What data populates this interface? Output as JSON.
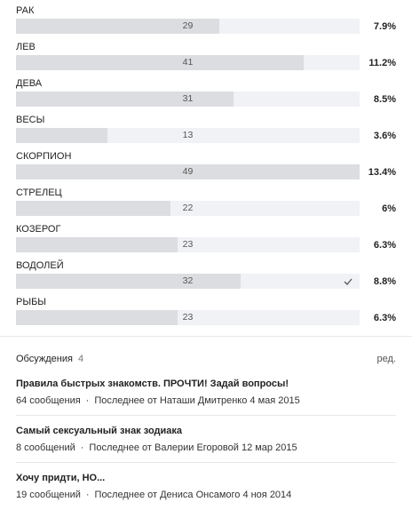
{
  "poll": {
    "options": [
      {
        "label": "РАК",
        "votes": 29,
        "percent": "7.9%"
      },
      {
        "label": "ЛЕВ",
        "votes": 41,
        "percent": "11.2%"
      },
      {
        "label": "ДЕВА",
        "votes": 31,
        "percent": "8.5%"
      },
      {
        "label": "ВЕСЫ",
        "votes": 13,
        "percent": "3.6%"
      },
      {
        "label": "СКОРПИОН",
        "votes": 49,
        "percent": "13.4%"
      },
      {
        "label": "СТРЕЛЕЦ",
        "votes": 22,
        "percent": "6%"
      },
      {
        "label": "КОЗЕРОГ",
        "votes": 23,
        "percent": "6.3%"
      },
      {
        "label": "ВОДОЛЕЙ",
        "votes": 32,
        "percent": "8.8%",
        "checked": true
      },
      {
        "label": "РЫБЫ",
        "votes": 23,
        "percent": "6.3%"
      }
    ]
  },
  "discussions": {
    "title": "Обсуждения",
    "count": "4",
    "edit": "ред.",
    "topics": [
      {
        "title": "Правила быстрых знакомств. ПРОЧТИ! Задай вопросы!",
        "posts": "64 сообщения",
        "last": "Последнее от Наташи Дмитренко 4 мая 2015"
      },
      {
        "title": "Самый сексуальный знак зодиака",
        "posts": "8 сообщений",
        "last": "Последнее от Валерии Егоровой 12 мар 2015"
      },
      {
        "title": "Хочу придти, НО...",
        "posts": "19 сообщений",
        "last": "Последнее от Дениса Онсамого 4 ноя 2014"
      }
    ]
  }
}
